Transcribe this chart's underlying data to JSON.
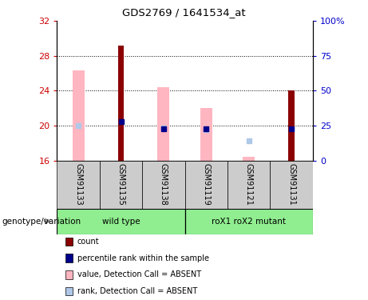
{
  "title": "GDS2769 / 1641534_at",
  "samples": [
    "GSM91133",
    "GSM91135",
    "GSM91138",
    "GSM91119",
    "GSM91121",
    "GSM91131"
  ],
  "ylim_left": [
    16,
    32
  ],
  "ylim_right": [
    0,
    100
  ],
  "yticks_left": [
    16,
    20,
    24,
    28,
    32
  ],
  "ytick_labels_left": [
    "16",
    "20",
    "24",
    "28",
    "32"
  ],
  "yticks_right": [
    0,
    25,
    50,
    75,
    100
  ],
  "ytick_labels_right": [
    "0",
    "25",
    "50",
    "75",
    "100%"
  ],
  "bar_base": 16,
  "count_bars": {
    "color": "#8B0000",
    "values": [
      null,
      29.2,
      null,
      null,
      null,
      24.0
    ]
  },
  "rank_bars": {
    "color": "#00008B",
    "values": [
      null,
      20.5,
      19.6,
      19.6,
      null,
      19.6
    ]
  },
  "absent_value_bars": {
    "color": "#FFB6C1",
    "values": [
      26.3,
      null,
      24.4,
      22.0,
      16.4,
      null
    ]
  },
  "absent_rank_markers": {
    "color": "#AFC8E8",
    "values": [
      20.0,
      null,
      19.7,
      19.5,
      18.3,
      null
    ]
  },
  "left_axis_color": "#CC0000",
  "right_axis_color": "#0000CC",
  "grid_yticks": [
    20,
    24,
    28
  ],
  "groups": [
    {
      "label": "wild type",
      "start": 0,
      "end": 2
    },
    {
      "label": "roX1 roX2 mutant",
      "start": 3,
      "end": 5
    }
  ],
  "group_color": "#90EE90",
  "legend_items": [
    {
      "label": "count",
      "color": "#8B0000"
    },
    {
      "label": "percentile rank within the sample",
      "color": "#00008B"
    },
    {
      "label": "value, Detection Call = ABSENT",
      "color": "#FFB6C1"
    },
    {
      "label": "rank, Detection Call = ABSENT",
      "color": "#AFC8E8"
    }
  ]
}
